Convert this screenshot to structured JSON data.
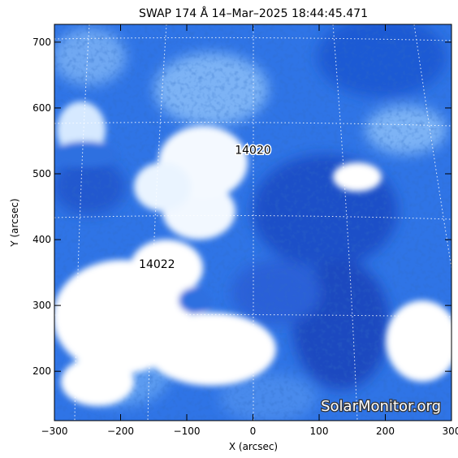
{
  "title": "SWAP 174 Å 14–Mar–2025 18:44:45.471",
  "xlabel": "X (arcsec)",
  "ylabel": "Y (arcsec)",
  "x_ticks": [
    "−300",
    "−200",
    "−100",
    "0",
    "100",
    "200",
    "300"
  ],
  "y_ticks": [
    "200",
    "300",
    "400",
    "500",
    "600",
    "700"
  ],
  "x_range": [
    -300,
    300
  ],
  "y_range": [
    125,
    727
  ],
  "regions": [
    {
      "label": "14020",
      "x": 0,
      "y": 530
    },
    {
      "label": "14022",
      "x": -145,
      "y": 357
    }
  ],
  "watermark": "SolarMonitor.org",
  "colors": {
    "map_dark": "#0a2a8a",
    "map_mid": "#2f74e6",
    "map_light": "#a9d0ff",
    "map_bright": "#ffffff",
    "grid": "#ffffff"
  }
}
